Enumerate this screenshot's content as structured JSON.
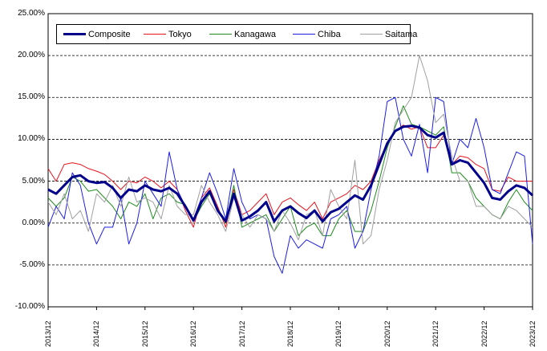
{
  "chart_data": {
    "type": "line",
    "ylim": [
      -10,
      25
    ],
    "y_ticks": [
      "25.00%",
      "20.00%",
      "15.00%",
      "10.00%",
      "5.00%",
      "0.00%",
      "-5.00%",
      "-10.00%"
    ],
    "y_tick_values": [
      25,
      20,
      15,
      10,
      5,
      0,
      -5,
      -10
    ],
    "x_ticks": [
      "2013/12",
      "2014/12",
      "2015/12",
      "2016/12",
      "2017/12",
      "2018/12",
      "2019/12",
      "2020/12",
      "2021/12",
      "2022/12",
      "2023/12"
    ],
    "x_tick_values": [
      2013.917,
      2014.917,
      2015.917,
      2016.917,
      2017.917,
      2018.917,
      2019.917,
      2020.917,
      2021.917,
      2022.917,
      2023.917
    ],
    "xlim": [
      2013.917,
      2023.917
    ],
    "grid": "horizontal dashed",
    "legend_position": "top-left",
    "series": [
      {
        "name": "Composite",
        "color": "#00008B",
        "width": 3,
        "x": [
          2013.917,
          2014.083,
          2014.25,
          2014.417,
          2014.583,
          2014.75,
          2014.917,
          2015.083,
          2015.25,
          2015.417,
          2015.583,
          2015.75,
          2015.917,
          2016.083,
          2016.25,
          2016.417,
          2016.583,
          2016.75,
          2016.917,
          2017.083,
          2017.25,
          2017.417,
          2017.583,
          2017.75,
          2017.917,
          2018.083,
          2018.25,
          2018.417,
          2018.583,
          2018.75,
          2018.917,
          2019.083,
          2019.25,
          2019.417,
          2019.583,
          2019.75,
          2019.917,
          2020.083,
          2020.25,
          2020.417,
          2020.583,
          2020.75,
          2020.917,
          2021.083,
          2021.25,
          2021.417,
          2021.583,
          2021.75,
          2021.917,
          2022.083,
          2022.25,
          2022.417,
          2022.583,
          2022.75,
          2022.917,
          2023.083,
          2023.25,
          2023.417,
          2023.583,
          2023.75,
          2023.917
        ],
        "values": [
          4.0,
          3.5,
          4.5,
          5.5,
          5.7,
          5.0,
          4.8,
          4.9,
          4.2,
          3.0,
          4.0,
          3.8,
          4.5,
          4.0,
          3.8,
          4.2,
          3.5,
          2.0,
          0.3,
          2.5,
          3.8,
          1.5,
          0.2,
          3.5,
          0.3,
          0.8,
          1.5,
          2.5,
          0.2,
          1.5,
          2.0,
          1.2,
          0.6,
          1.5,
          0.2,
          1.3,
          1.7,
          2.5,
          3.3,
          2.8,
          4.5,
          7.0,
          9.5,
          11.0,
          11.5,
          11.6,
          11.4,
          10.5,
          10.2,
          10.8,
          7.0,
          7.5,
          7.2,
          6.0,
          4.8,
          3.0,
          2.8,
          3.8,
          4.5,
          4.2,
          3.3
        ]
      },
      {
        "name": "Tokyo",
        "color": "#E8141E",
        "width": 1,
        "x": [
          2013.917,
          2014.083,
          2014.25,
          2014.417,
          2014.583,
          2014.75,
          2014.917,
          2015.083,
          2015.25,
          2015.417,
          2015.583,
          2015.75,
          2015.917,
          2016.083,
          2016.25,
          2016.417,
          2016.583,
          2016.75,
          2016.917,
          2017.083,
          2017.25,
          2017.417,
          2017.583,
          2017.75,
          2017.917,
          2018.083,
          2018.25,
          2018.417,
          2018.583,
          2018.75,
          2018.917,
          2019.083,
          2019.25,
          2019.417,
          2019.583,
          2019.75,
          2019.917,
          2020.083,
          2020.25,
          2020.417,
          2020.583,
          2020.75,
          2020.917,
          2021.083,
          2021.25,
          2021.417,
          2021.583,
          2021.75,
          2021.917,
          2022.083,
          2022.25,
          2022.417,
          2022.583,
          2022.75,
          2022.917,
          2023.083,
          2023.25,
          2023.417,
          2023.583,
          2023.75,
          2023.917
        ],
        "values": [
          6.5,
          5.0,
          7.0,
          7.2,
          7.0,
          6.5,
          6.2,
          5.8,
          5.0,
          4.0,
          5.0,
          4.8,
          5.5,
          5.0,
          4.2,
          5.0,
          4.0,
          1.5,
          -0.5,
          3.0,
          4.2,
          2.0,
          -0.5,
          4.0,
          1.0,
          1.5,
          2.5,
          3.5,
          1.0,
          2.5,
          3.0,
          2.2,
          1.5,
          2.5,
          0.5,
          2.5,
          3.0,
          3.5,
          4.5,
          4.0,
          5.0,
          7.5,
          9.5,
          11.0,
          11.7,
          11.2,
          11.5,
          9.0,
          9.0,
          10.5,
          7.0,
          8.0,
          7.8,
          7.0,
          6.5,
          4.0,
          3.8,
          5.5,
          5.0,
          5.0,
          5.0
        ]
      },
      {
        "name": "Kanagawa",
        "color": "#1E8C1E",
        "width": 1,
        "x": [
          2013.917,
          2014.083,
          2014.25,
          2014.417,
          2014.583,
          2014.75,
          2014.917,
          2015.083,
          2015.25,
          2015.417,
          2015.583,
          2015.75,
          2015.917,
          2016.083,
          2016.25,
          2016.417,
          2016.583,
          2016.75,
          2016.917,
          2017.083,
          2017.25,
          2017.417,
          2017.583,
          2017.75,
          2017.917,
          2018.083,
          2018.25,
          2018.417,
          2018.583,
          2018.75,
          2018.917,
          2019.083,
          2019.25,
          2019.417,
          2019.583,
          2019.75,
          2019.917,
          2020.083,
          2020.25,
          2020.417,
          2020.583,
          2020.75,
          2020.917,
          2021.083,
          2021.25,
          2021.417,
          2021.583,
          2021.75,
          2021.917,
          2022.083,
          2022.25,
          2022.417,
          2022.583,
          2022.75,
          2022.917,
          2023.083,
          2023.25,
          2023.417,
          2023.583,
          2023.75,
          2023.917
        ],
        "values": [
          3.0,
          2.0,
          3.0,
          5.5,
          5.0,
          3.8,
          4.0,
          3.0,
          2.0,
          0.5,
          2.5,
          2.0,
          3.5,
          0.5,
          3.0,
          3.5,
          2.5,
          2.2,
          0.2,
          2.0,
          3.5,
          1.5,
          0.0,
          4.5,
          -0.5,
          0.0,
          0.5,
          1.0,
          -1.0,
          0.5,
          2.0,
          -1.5,
          -0.5,
          0.0,
          -1.5,
          -1.5,
          0.5,
          1.5,
          -1.0,
          -1.0,
          1.5,
          5.0,
          9.0,
          11.5,
          14.0,
          11.8,
          11.5,
          11.0,
          10.5,
          11.5,
          6.0,
          6.0,
          5.0,
          3.0,
          2.0,
          1.0,
          0.5,
          2.5,
          4.0,
          2.5,
          1.5
        ]
      },
      {
        "name": "Chiba",
        "color": "#1E1EE6",
        "width": 1,
        "x": [
          2013.917,
          2014.083,
          2014.25,
          2014.417,
          2014.583,
          2014.75,
          2014.917,
          2015.083,
          2015.25,
          2015.417,
          2015.583,
          2015.75,
          2015.917,
          2016.083,
          2016.25,
          2016.417,
          2016.583,
          2016.75,
          2016.917,
          2017.083,
          2017.25,
          2017.417,
          2017.583,
          2017.75,
          2017.917,
          2018.083,
          2018.25,
          2018.417,
          2018.583,
          2018.75,
          2018.917,
          2019.083,
          2019.25,
          2019.417,
          2019.583,
          2019.75,
          2019.917,
          2020.083,
          2020.25,
          2020.417,
          2020.583,
          2020.75,
          2020.917,
          2021.083,
          2021.25,
          2021.417,
          2021.583,
          2021.75,
          2021.917,
          2022.083,
          2022.25,
          2022.417,
          2022.583,
          2022.75,
          2022.917,
          2023.083,
          2023.25,
          2023.417,
          2023.583,
          2023.75,
          2023.917
        ],
        "values": [
          -0.5,
          2.0,
          0.5,
          6.0,
          4.5,
          0.0,
          -2.5,
          -0.5,
          -0.5,
          3.0,
          -2.5,
          0.0,
          5.0,
          3.5,
          2.0,
          8.5,
          4.0,
          2.0,
          0.5,
          3.0,
          6.0,
          3.5,
          0.5,
          6.5,
          2.5,
          0.5,
          1.0,
          0.5,
          -4.0,
          -6.0,
          -1.5,
          -3.0,
          -2.0,
          -2.5,
          -3.0,
          0.5,
          1.0,
          2.0,
          -3.0,
          -1.0,
          4.0,
          8.0,
          14.5,
          15.0,
          10.0,
          8.0,
          11.8,
          6.0,
          15.0,
          14.5,
          7.0,
          10.0,
          9.0,
          12.5,
          9.0,
          4.0,
          3.5,
          6.0,
          8.5,
          8.0,
          -2.5
        ]
      },
      {
        "name": "Saitama",
        "color": "#A0A0A0",
        "width": 1,
        "x": [
          2013.917,
          2014.083,
          2014.25,
          2014.417,
          2014.583,
          2014.75,
          2014.917,
          2015.083,
          2015.25,
          2015.417,
          2015.583,
          2015.75,
          2015.917,
          2016.083,
          2016.25,
          2016.417,
          2016.583,
          2016.75,
          2016.917,
          2017.083,
          2017.25,
          2017.417,
          2017.583,
          2017.75,
          2017.917,
          2018.083,
          2018.25,
          2018.417,
          2018.583,
          2018.75,
          2018.917,
          2019.083,
          2019.25,
          2019.417,
          2019.583,
          2019.75,
          2019.917,
          2020.083,
          2020.25,
          2020.417,
          2020.583,
          2020.75,
          2020.917,
          2021.083,
          2021.25,
          2021.417,
          2021.583,
          2021.75,
          2021.917,
          2022.083,
          2022.25,
          2022.417,
          2022.583,
          2022.75,
          2022.917,
          2023.083,
          2023.25,
          2023.417,
          2023.583,
          2023.75,
          2023.917
        ],
        "values": [
          2.5,
          1.0,
          3.5,
          0.5,
          1.5,
          -1.0,
          3.5,
          2.5,
          4.5,
          2.0,
          5.5,
          2.5,
          3.0,
          2.5,
          0.5,
          4.5,
          2.0,
          1.0,
          1.0,
          4.5,
          2.5,
          1.0,
          -1.0,
          3.0,
          1.0,
          -0.5,
          1.0,
          0.5,
          -1.0,
          1.5,
          0.0,
          -2.0,
          1.0,
          1.5,
          -1.5,
          4.0,
          2.0,
          0.5,
          7.5,
          -2.5,
          -1.5,
          4.0,
          7.5,
          12.0,
          13.5,
          15.0,
          20.0,
          17.0,
          12.0,
          13.0,
          8.0,
          5.0,
          5.0,
          2.0,
          2.0,
          1.0,
          0.5,
          2.0,
          1.5,
          0.5,
          -0.5
        ]
      }
    ]
  }
}
